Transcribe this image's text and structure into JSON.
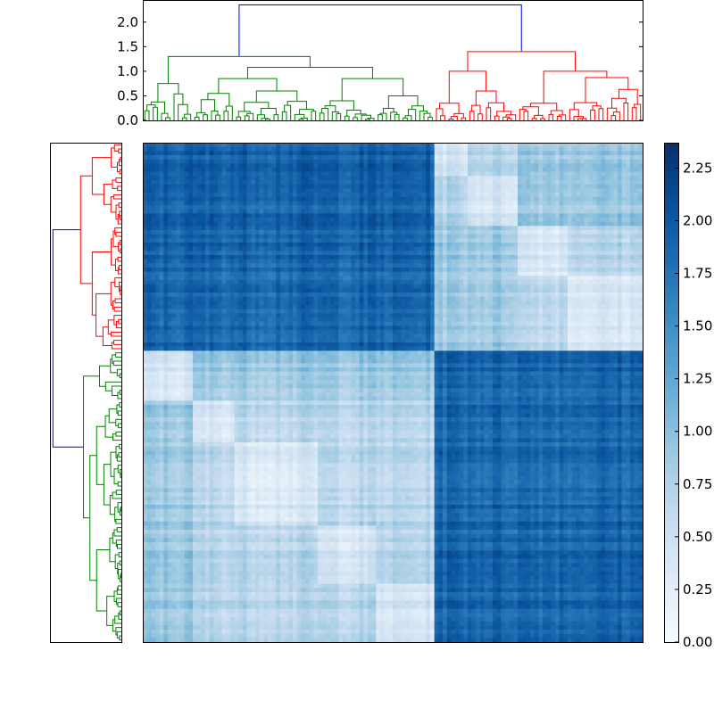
{
  "chart_data": {
    "type": "heatmap",
    "title": "",
    "leaf_count": 120,
    "colors": {
      "above_threshold": "#0000ff",
      "cluster_a": "#008000",
      "cluster_b": "#ff0000"
    },
    "tree": {
      "h": 2.35,
      "children": [
        {
          "cluster": "a",
          "h": 1.3,
          "children": [
            {
              "h": 0.75,
              "n": 12
            },
            {
              "h": 1.08,
              "children": [
                {
                  "h": 0.85,
                  "children": [
                    {
                      "h": 0.55,
                      "n": 10
                    },
                    {
                      "h": 0.6,
                      "n": 20
                    }
                  ]
                },
                {
                  "h": 0.85,
                  "children": [
                    {
                      "h": 0.4,
                      "n": 14
                    },
                    {
                      "h": 0.5,
                      "n": 14
                    }
                  ]
                }
              ]
            }
          ]
        },
        {
          "cluster": "b",
          "h": 1.4,
          "children": [
            {
              "h": 1.0,
              "children": [
                {
                  "h": 0.35,
                  "n": 8
                },
                {
                  "h": 0.6,
                  "n": 12
                }
              ]
            },
            {
              "h": 1.0,
              "children": [
                {
                  "h": 0.35,
                  "n": 12
                },
                {
                  "h": 0.87,
                  "n": 18
                }
              ]
            }
          ]
        }
      ]
    },
    "dendrogram_top": {
      "ylim": [
        0,
        2.45
      ],
      "yticks": [
        "0.0",
        "0.5",
        "1.0",
        "1.5",
        "2.0"
      ],
      "order": [
        "a",
        "b"
      ]
    },
    "dendrogram_left": {
      "xlim": [
        0,
        2.45
      ],
      "order": [
        "b",
        "a"
      ]
    },
    "heatmap": {
      "colormap": "Blues",
      "vmin": 0,
      "vmax": 2.37,
      "within_group": 0.35,
      "within_subcluster": 0.65,
      "within_cluster": 0.85,
      "between_clusters": 1.85
    },
    "colorbar": {
      "ticks": [
        "0.00",
        "0.25",
        "0.50",
        "0.75",
        "1.00",
        "1.25",
        "1.50",
        "1.75",
        "2.00",
        "2.25"
      ]
    }
  }
}
